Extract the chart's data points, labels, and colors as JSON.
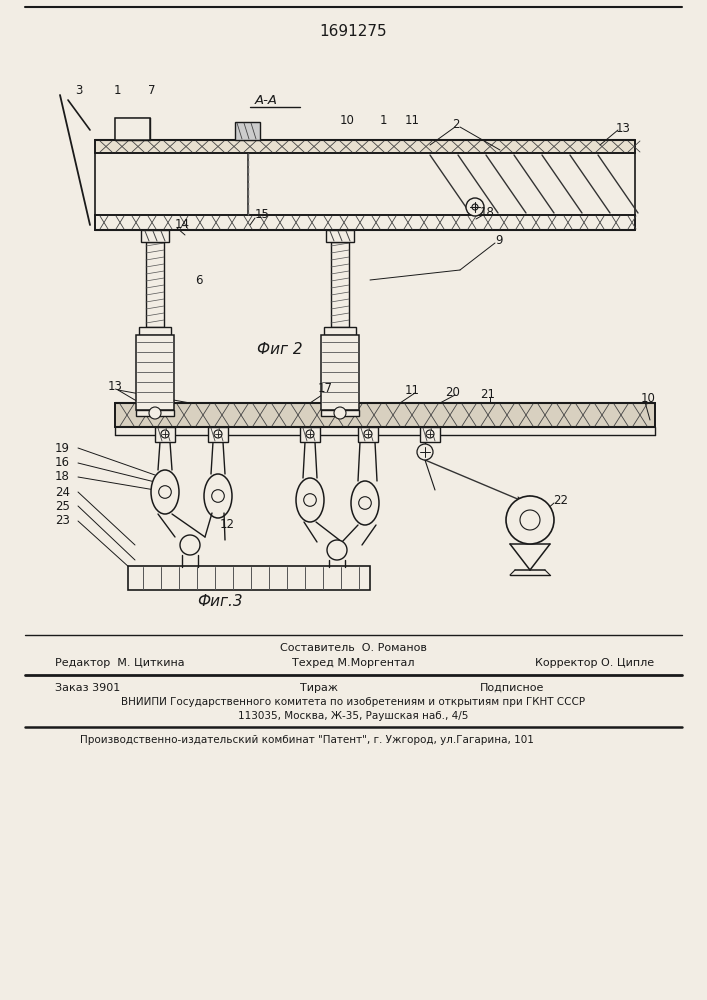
{
  "patent_number": "1691275",
  "fig2_label": "Фиг 2",
  "fig3_label": "Фиг.3",
  "footer_line1_left": "Редактор  М. Циткина",
  "footer_line1_mid_top": "Составитель  О. Романов",
  "footer_line1_mid_bot": "Техред М.Моргентал",
  "footer_line1_right": "Корректор О. Ципле",
  "footer_line2_left": "Заказ 3901",
  "footer_line2_mid": "Тираж",
  "footer_line2_right": "Подписное",
  "footer_line3": "ВНИИПИ Государственного комитета по изобретениям и открытиям при ГКНТ СССР",
  "footer_line4": "113035, Москва, Ж-35, Раушская наб., 4/5",
  "footer_line5": "Производственно-издательский комбинат \"Патент\", г. Ужгород, ул.Гагарина, 101",
  "bg_color": "#f2ede4",
  "line_color": "#1a1a1a",
  "text_color": "#1a1a1a"
}
